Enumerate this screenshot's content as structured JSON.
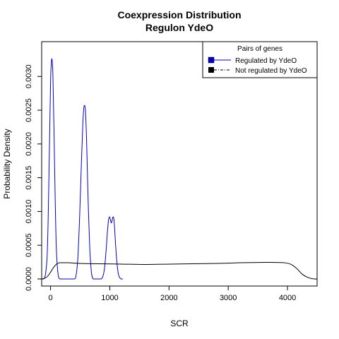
{
  "chart_data": {
    "type": "line",
    "title": "Coexpression Distribution",
    "subtitle": "Regulon YdeO",
    "xlabel": "SCR",
    "ylabel": "Probability Density",
    "xlim": [
      -150,
      4500
    ],
    "ylim": [
      0,
      0.0034
    ],
    "x_ticks": [
      0,
      1000,
      2000,
      3000,
      4000
    ],
    "x_tick_labels": [
      "0",
      "1000",
      "2000",
      "3000",
      "4000"
    ],
    "y_ticks": [
      0.0,
      0.0005,
      0.001,
      0.0015,
      0.002,
      0.0025,
      0.003
    ],
    "y_tick_labels": [
      "0.0000",
      "0.0005",
      "0.0010",
      "0.0015",
      "0.0020",
      "0.0025",
      "0.0030"
    ],
    "grid": false,
    "legend": {
      "title": "Pairs of genes",
      "placement": "top-right",
      "entries": [
        "Regulated by  YdeO",
        "Not regulated by  YdeO"
      ]
    },
    "series": [
      {
        "name": "Regulated by  YdeO",
        "color": "#0000cc",
        "line_style": "solid",
        "x": [
          -150,
          -120,
          -90,
          -60,
          -40,
          -20,
          0,
          10,
          20,
          30,
          40,
          60,
          80,
          100,
          130,
          160,
          200,
          300,
          400,
          430,
          460,
          490,
          520,
          545,
          560,
          575,
          590,
          610,
          630,
          660,
          690,
          720,
          760,
          800,
          850,
          880,
          910,
          940,
          960,
          980,
          995,
          1010,
          1025,
          1040,
          1055,
          1070,
          1085,
          1100,
          1120,
          1140,
          1160,
          1190,
          1220
        ],
        "y": [
          0.0,
          0.0,
          5e-05,
          0.0003,
          0.0009,
          0.0019,
          0.0029,
          0.00315,
          0.00326,
          0.0032,
          0.003,
          0.0021,
          0.0011,
          0.0004,
          5e-05,
          0.0,
          0.0,
          0.0,
          0.0,
          5e-05,
          0.0003,
          0.0009,
          0.0017,
          0.0023,
          0.00252,
          0.00257,
          0.00248,
          0.002,
          0.0013,
          0.0005,
          0.0001,
          0.0,
          0.0,
          0.0,
          0.0,
          3e-05,
          0.00015,
          0.00045,
          0.0007,
          0.00088,
          0.00092,
          0.00088,
          0.00083,
          0.00087,
          0.00092,
          0.00088,
          0.0007,
          0.00048,
          0.00025,
          0.0001,
          3e-05,
          0.0,
          0.0
        ]
      },
      {
        "name": "Not regulated by  YdeO",
        "color": "#000000",
        "line_style": "solid",
        "x": [
          -150,
          -100,
          -50,
          0,
          50,
          100,
          150,
          200,
          300,
          500,
          800,
          1200,
          1600,
          2000,
          2400,
          2800,
          3200,
          3500,
          3800,
          3950,
          4050,
          4150,
          4250,
          4350,
          4450,
          4500
        ],
        "y": [
          0.0,
          1e-05,
          4e-05,
          0.0001,
          0.00017,
          0.00022,
          0.00024,
          0.00024,
          0.00024,
          0.00023,
          0.000225,
          0.00022,
          0.000215,
          0.00022,
          0.000225,
          0.00023,
          0.00024,
          0.000245,
          0.000245,
          0.00024,
          0.00022,
          0.00016,
          7e-05,
          2e-05,
          0.0,
          0.0
        ]
      }
    ]
  }
}
